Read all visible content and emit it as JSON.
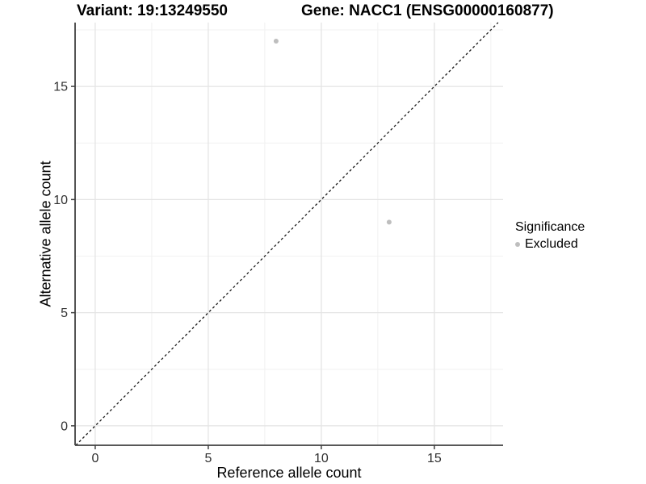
{
  "chart_data": {
    "type": "scatter",
    "title_left": "Variant: 19:13249550",
    "title_right": "Gene: NACC1 (ENSG00000160877)",
    "xlabel": "Reference allele count",
    "ylabel": "Alternative allele count",
    "xlim": [
      -0.89,
      18.04
    ],
    "ylim": [
      -0.86,
      17.82
    ],
    "x_major_ticks": [
      0,
      5,
      10,
      15
    ],
    "y_major_ticks": [
      0,
      5,
      10,
      15
    ],
    "x_minor_gridlines": [
      2.5,
      7.5,
      12.5,
      17.5
    ],
    "y_minor_gridlines": [
      2.5,
      7.5,
      12.5,
      17.5
    ],
    "grid": "major_and_minor",
    "identity_line": {
      "style": "dashed",
      "slope": 1,
      "intercept": 0
    },
    "series": [
      {
        "name": "Excluded",
        "color": "#bebebe",
        "points": [
          {
            "x": 8,
            "y": 17
          },
          {
            "x": 13,
            "y": 9
          }
        ]
      }
    ],
    "legend": {
      "title": "Significance",
      "position": "right",
      "items": [
        {
          "label": "Excluded",
          "color": "#bebebe"
        }
      ]
    }
  },
  "colors": {
    "background": "#ffffff",
    "grid_major": "#e4e4e4",
    "grid_minor": "#f1f1f1",
    "axis_line": "#404040",
    "tick_text": "#303030",
    "identity_line": "#1a1a1a",
    "point": "#bebebe",
    "title_text": "#000000"
  }
}
